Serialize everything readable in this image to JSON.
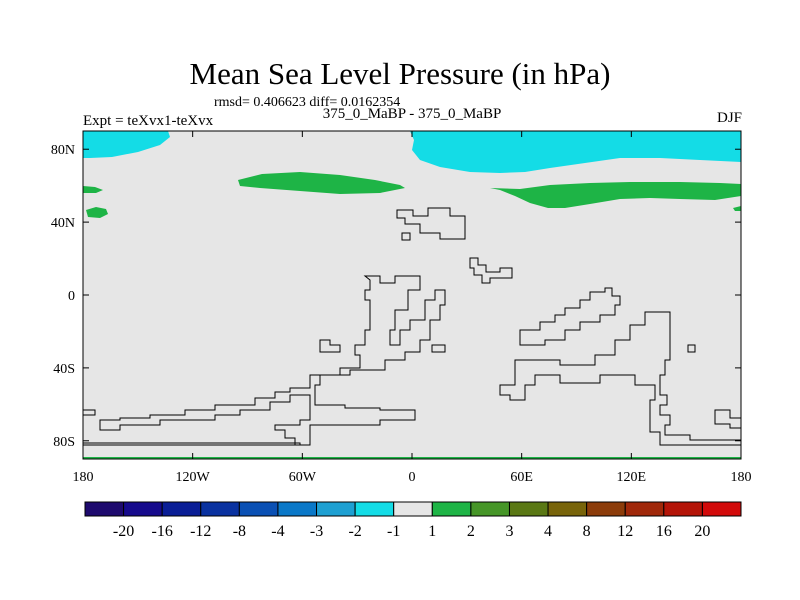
{
  "chart_data": {
    "type": "heatmap",
    "title": "Mean Sea Level Pressure (in hPa)",
    "stats_line": "rmsd= 0.406623 diff= 0.0162354",
    "subtitle": "375_0_MaBP - 375_0_MaBP",
    "left_label": "Expt = teXvx1-teXvx",
    "right_label": "DJF",
    "x_axis": {
      "range": [
        -180,
        180
      ],
      "ticks": [
        -180,
        -120,
        -60,
        0,
        60,
        120,
        180
      ],
      "tick_labels": [
        "180",
        "120W",
        "60W",
        "0",
        "60E",
        "120E",
        "180"
      ]
    },
    "y_axis": {
      "range": [
        -90,
        90
      ],
      "ticks": [
        80,
        40,
        0,
        -40,
        -80
      ],
      "tick_labels": [
        "80N",
        "40N",
        "0",
        "40S",
        "80S"
      ]
    },
    "background_level": "-1 to 1",
    "colorbar": {
      "labels": [
        "-20",
        "-16",
        "-12",
        "-8",
        "-4",
        "-3",
        "-2",
        "-1",
        "1",
        "2",
        "3",
        "4",
        "8",
        "12",
        "16",
        "20"
      ],
      "colors": [
        "#1e0a6e",
        "#160a8c",
        "#0a1e96",
        "#0a32a0",
        "#0a50b4",
        "#0a78c8",
        "#1ea0d2",
        "#14dce6",
        "#e6e6e6",
        "#1eb446",
        "#469628",
        "#5a7814",
        "#78640a",
        "#8c3c0a",
        "#a0280a",
        "#b41408",
        "#d20a0a"
      ]
    },
    "regions": [
      {
        "name": "negative anomaly, northern high latitudes",
        "level": "-2 to -1",
        "color": "#14dce6"
      },
      {
        "name": "positive anomaly, northern mid latitudes",
        "level": "1 to 2",
        "color": "#1eb446"
      }
    ]
  }
}
